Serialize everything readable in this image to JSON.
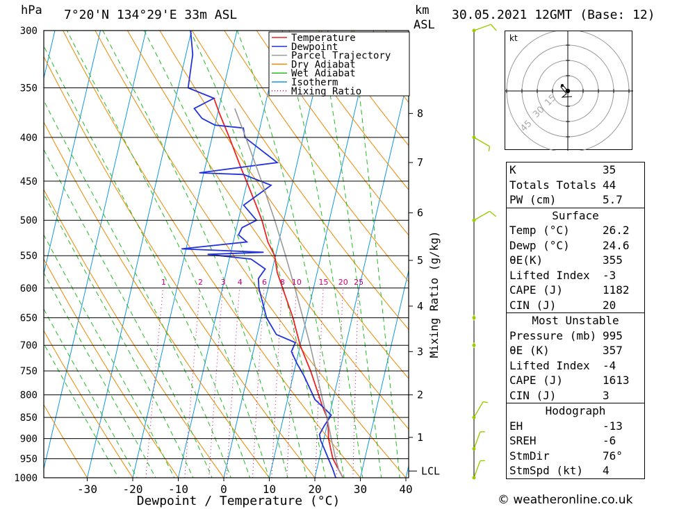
{
  "header": {
    "pressure_unit": "hPa",
    "location": "7°20'N 134°29'E 33m ASL",
    "km_label": "km",
    "asl_label": "ASL",
    "datetime": "30.05.2021 12GMT (Base: 12)"
  },
  "colors": {
    "temperature": "#ee2222",
    "dewpoint": "#2233dd",
    "parcel": "#999999",
    "dry_adiabat": "#ee8800",
    "wet_adiabat": "#22bb22",
    "isotherm": "#1199dd",
    "mixing_ratio": "#cc0077",
    "wind_barb": "#99cc00"
  },
  "chart_data": {
    "type": "line",
    "xlabel": "Dewpoint / Temperature (°C)",
    "ylabel_left": "hPa",
    "ylabel_right": "Mixing Ratio (g/kg)",
    "x_ticks": [
      -30,
      -20,
      -10,
      0,
      10,
      20,
      30,
      40
    ],
    "xlim": [
      -40,
      40
    ],
    "pressure_levels": [
      300,
      350,
      400,
      450,
      500,
      550,
      600,
      650,
      700,
      750,
      800,
      850,
      900,
      950,
      1000
    ],
    "ylim": [
      1000,
      300
    ],
    "y_scale": "log",
    "km_ticks": [
      {
        "label": "8",
        "p": 375
      },
      {
        "label": "7",
        "p": 428
      },
      {
        "label": "6",
        "p": 490
      },
      {
        "label": "5",
        "p": 557
      },
      {
        "label": "4",
        "p": 630
      },
      {
        "label": "3",
        "p": 712
      },
      {
        "label": "2",
        "p": 800
      },
      {
        "label": "1",
        "p": 897
      }
    ],
    "lcl_label": "LCL",
    "lcl_pressure": 982,
    "mixing_ratio_labels": [
      "1",
      "2",
      "3",
      "4",
      "6",
      "8",
      "10",
      "15",
      "20",
      "25"
    ],
    "mixing_ratio_values": [
      1,
      2,
      3,
      4,
      6,
      8,
      10,
      15,
      20,
      25
    ],
    "mixing_ratio_label_pressure": 590,
    "legend": [
      "Temperature",
      "Dewpoint",
      "Parcel Trajectory",
      "Dry Adiabat",
      "Wet Adiabat",
      "Isotherm",
      "Mixing Ratio"
    ],
    "legend_position": "top-right",
    "series": [
      {
        "name": "Temperature",
        "points": [
          [
            1000,
            26.2
          ],
          [
            975,
            24.6
          ],
          [
            950,
            23.0
          ],
          [
            925,
            22.0
          ],
          [
            900,
            21.0
          ],
          [
            875,
            20.4
          ],
          [
            850,
            19.6
          ],
          [
            825,
            18.0
          ],
          [
            800,
            16.6
          ],
          [
            750,
            13.6
          ],
          [
            700,
            10.0
          ],
          [
            650,
            7.0
          ],
          [
            600,
            3.2
          ],
          [
            575,
            1.2
          ],
          [
            550,
            -0.2
          ],
          [
            530,
            -2.4
          ],
          [
            500,
            -4.8
          ],
          [
            475,
            -7.4
          ],
          [
            450,
            -10.2
          ],
          [
            435,
            -12.0
          ],
          [
            400,
            -16.2
          ],
          [
            375,
            -19.6
          ],
          [
            360,
            -21.6
          ]
        ]
      },
      {
        "name": "Dewpoint",
        "points": [
          [
            1000,
            24.6
          ],
          [
            975,
            23.4
          ],
          [
            950,
            22.0
          ],
          [
            925,
            20.6
          ],
          [
            905,
            19.4
          ],
          [
            890,
            18.8
          ],
          [
            870,
            19.4
          ],
          [
            845,
            20.4
          ],
          [
            830,
            18.6
          ],
          [
            810,
            16.0
          ],
          [
            790,
            14.6
          ],
          [
            760,
            12.4
          ],
          [
            735,
            10.2
          ],
          [
            712,
            8.4
          ],
          [
            695,
            8.8
          ],
          [
            680,
            4.2
          ],
          [
            650,
            1.2
          ],
          [
            600,
            -2.0
          ],
          [
            585,
            -2.6
          ],
          [
            570,
            -1.6
          ],
          [
            555,
            -5.2
          ],
          [
            548,
            -15.0
          ],
          [
            545,
            -2.8
          ],
          [
            540,
            -21.0
          ],
          [
            530,
            -7.0
          ],
          [
            520,
            -9.2
          ],
          [
            510,
            -8.8
          ],
          [
            500,
            -6.0
          ],
          [
            480,
            -9.6
          ],
          [
            455,
            -4.6
          ],
          [
            442,
            -11.2
          ],
          [
            440,
            -21.0
          ],
          [
            428,
            -4.4
          ],
          [
            400,
            -12.8
          ],
          [
            390,
            -13.6
          ],
          [
            387,
            -20.0
          ],
          [
            380,
            -23.2
          ],
          [
            370,
            -25.4
          ],
          [
            360,
            -21.6
          ],
          [
            350,
            -27.8
          ],
          [
            320,
            -28.5
          ],
          [
            300,
            -30.2
          ]
        ]
      },
      {
        "name": "Parcel Trajectory",
        "points": [
          [
            1000,
            26.2
          ],
          [
            982,
            25.0
          ],
          [
            950,
            23.6
          ],
          [
            900,
            21.6
          ],
          [
            850,
            19.6
          ],
          [
            800,
            17.2
          ],
          [
            750,
            14.8
          ],
          [
            700,
            12.2
          ],
          [
            650,
            9.2
          ],
          [
            600,
            5.9
          ],
          [
            550,
            2.2
          ],
          [
            500,
            -2.0
          ],
          [
            450,
            -6.9
          ],
          [
            400,
            -12.6
          ],
          [
            370,
            -16.5
          ]
        ]
      }
    ],
    "wind_barbs": [
      {
        "p": 300,
        "dir": 250,
        "kt": 10
      },
      {
        "p": 400,
        "dir": 300,
        "kt": 5
      },
      {
        "p": 500,
        "dir": 240,
        "kt": 10
      },
      {
        "p": 650,
        "dir": 270,
        "kt": 0
      },
      {
        "p": 700,
        "dir": 90,
        "kt": 0
      },
      {
        "p": 850,
        "dir": 210,
        "kt": 5
      },
      {
        "p": 925,
        "dir": 200,
        "kt": 5
      },
      {
        "p": 1000,
        "dir": 200,
        "kt": 5
      }
    ]
  },
  "hodograph": {
    "unit": "kt",
    "ring_labels": [
      "15",
      "30",
      "45"
    ]
  },
  "indices": {
    "top": [
      {
        "label": "K",
        "value": "35"
      },
      {
        "label": "Totals Totals",
        "value": "44"
      },
      {
        "label": "PW (cm)",
        "value": "5.7"
      }
    ],
    "surface": {
      "title": "Surface",
      "rows": [
        {
          "label": "Temp (°C)",
          "value": "26.2"
        },
        {
          "label": "Dewp (°C)",
          "value": "24.6"
        },
        {
          "label": "θE(K)",
          "value": "355"
        },
        {
          "label": "Lifted Index",
          "value": "-3"
        },
        {
          "label": "CAPE (J)",
          "value": "1182"
        },
        {
          "label": "CIN (J)",
          "value": "20"
        }
      ]
    },
    "most_unstable": {
      "title": "Most Unstable",
      "rows": [
        {
          "label": "Pressure (mb)",
          "value": "995"
        },
        {
          "label": "θE (K)",
          "value": "357"
        },
        {
          "label": "Lifted Index",
          "value": "-4"
        },
        {
          "label": "CAPE (J)",
          "value": "1613"
        },
        {
          "label": "CIN (J)",
          "value": "3"
        }
      ]
    },
    "hodograph": {
      "title": "Hodograph",
      "rows": [
        {
          "label": "EH",
          "value": "-13"
        },
        {
          "label": "SREH",
          "value": "-6"
        },
        {
          "label": "StmDir",
          "value": "76°"
        },
        {
          "label": "StmSpd (kt)",
          "value": "4"
        }
      ]
    }
  },
  "footer": {
    "credit": "© weatheronline.co.uk"
  }
}
